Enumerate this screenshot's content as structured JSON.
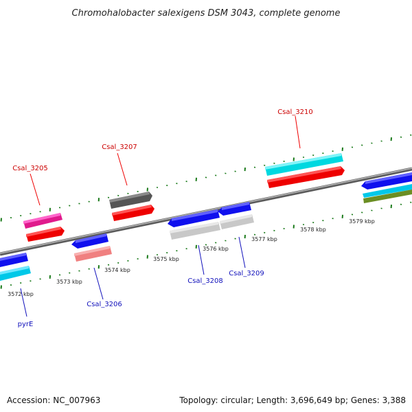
{
  "title": "Chromohalobacter salexigens DSM 3043, complete genome",
  "footer": {
    "accession": "Accession: NC_007963",
    "summary": "Topology: circular; Length: 3,696,649 bp; Genes: 3,388"
  },
  "colors": {
    "backbone": "#8a8a8a",
    "tick": "#1a7a1a",
    "forward_label": "#cc0000",
    "reverse_label": "#1010bb"
  },
  "kbp_labels": [
    "3572 kbp",
    "3573 kbp",
    "3574 kbp",
    "3575 kbp",
    "3576 kbp",
    "3577 kbp",
    "3578 kbp",
    "3579 kbp"
  ],
  "forward_genes": [
    {
      "label": "Csal_3205",
      "color": "#ff0000"
    },
    {
      "label": "Csal_3207",
      "color": "#ff0000"
    },
    {
      "label": "Csal_3210",
      "color": "#ff0000"
    }
  ],
  "reverse_genes": [
    {
      "label": "pyrE",
      "color": "#1010ee"
    },
    {
      "label": "Csal_3206",
      "color": "#1010ee"
    },
    {
      "label": "Csal_3208",
      "color": "#1010ee"
    },
    {
      "label": "Csal_3209",
      "color": "#1010ee"
    }
  ]
}
